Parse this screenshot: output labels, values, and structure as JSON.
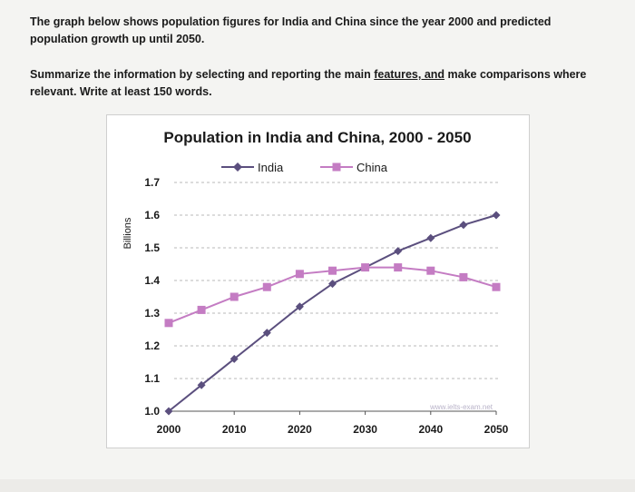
{
  "question": {
    "paragraph1": "The graph below shows population figures for India and China since the year 2000 and predicted population growth up until 2050.",
    "paragraph2_before": "Summarize the information by selecting and reporting the main ",
    "paragraph2_link": "features, and",
    "paragraph2_after": " make comparisons where relevant. Write at least 150 words."
  },
  "watermark": "www.ielts-exam.net",
  "colors": {
    "india": "#5b4f7e",
    "china": "#c47cc3",
    "grid": "#b8b8b8"
  },
  "chart_data": {
    "type": "line",
    "title": "Population in India and China, 2000 - 2050",
    "xlabel": "",
    "ylabel": "Billions",
    "x": [
      2000,
      2005,
      2010,
      2015,
      2020,
      2025,
      2030,
      2035,
      2040,
      2045,
      2050
    ],
    "xticks": [
      "2000",
      "2010",
      "2020",
      "2030",
      "2040",
      "2050"
    ],
    "yticks": [
      "1.0",
      "1.1",
      "1.2",
      "1.3",
      "1.4",
      "1.5",
      "1.6",
      "1.7"
    ],
    "ylim": [
      1.0,
      1.7
    ],
    "legend_position": "top-center",
    "grid": "horizontal-dashed",
    "series": [
      {
        "name": "India",
        "marker": "diamond",
        "values": [
          1.0,
          1.08,
          1.16,
          1.24,
          1.32,
          1.39,
          1.44,
          1.49,
          1.53,
          1.57,
          1.6
        ]
      },
      {
        "name": "China",
        "marker": "square",
        "values": [
          1.27,
          1.31,
          1.35,
          1.38,
          1.42,
          1.43,
          1.44,
          1.44,
          1.43,
          1.41,
          1.38
        ]
      }
    ]
  }
}
